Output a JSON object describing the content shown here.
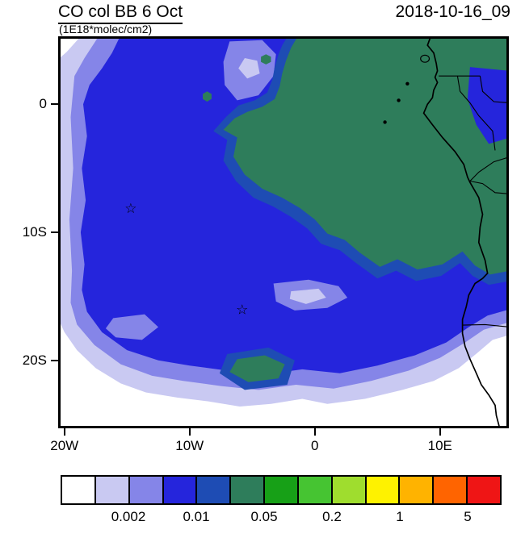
{
  "header": {
    "title": "CO col BB 6 Oct",
    "subtitle": "(1E18*molec/cm2)",
    "timestamp": "2018-10-16_09"
  },
  "chart_data": {
    "type": "heatmap",
    "subtype": "filled-contour-geographic-map",
    "title": "CO col BB 6 Oct",
    "units": "1E18*molec/cm2",
    "timestamp": "2018-10-16_09",
    "x_axis": {
      "range": [
        -20.5,
        15.5
      ],
      "ticks": [
        {
          "value": -20,
          "label": "20W"
        },
        {
          "value": -10,
          "label": "10W"
        },
        {
          "value": 0,
          "label": "0"
        },
        {
          "value": 10,
          "label": "10E"
        }
      ]
    },
    "y_axis": {
      "range": [
        -25.3,
        5.3
      ],
      "ticks": [
        {
          "value": 0,
          "label": "0"
        },
        {
          "value": -10,
          "label": "10S"
        },
        {
          "value": -20,
          "label": "20S"
        }
      ]
    },
    "colorbar": {
      "colors": [
        "#ffffff",
        "#c9c9f2",
        "#8585e8",
        "#2525dc",
        "#1e4cb4",
        "#2e7d5b",
        "#17a017",
        "#46c432",
        "#9fdd2e",
        "#fef200",
        "#ffb300",
        "#ff6400",
        "#ef1515"
      ],
      "labels": [
        {
          "boundary_after_cell": 2,
          "text": "0.002"
        },
        {
          "boundary_after_cell": 4,
          "text": "0.01"
        },
        {
          "boundary_after_cell": 6,
          "text": "0.05"
        },
        {
          "boundary_after_cell": 8,
          "text": "0.2"
        },
        {
          "boundary_after_cell": 10,
          "text": "1"
        },
        {
          "boundary_after_cell": 12,
          "text": "5"
        }
      ]
    },
    "markers": [
      {
        "symbol": "☆",
        "lon": -14.7,
        "lat": -8.1
      },
      {
        "symbol": "☆",
        "lon": -5.8,
        "lat": -16.0
      }
    ],
    "regions": [
      {
        "color": 1,
        "points": [
          [
            -18.6,
            5.4
          ],
          [
            15.6,
            5.4
          ],
          [
            15.6,
            -18.0
          ],
          [
            14.2,
            -18.4
          ],
          [
            13.0,
            -19.4
          ],
          [
            11.5,
            -20.6
          ],
          [
            9.5,
            -21.6
          ],
          [
            7.0,
            -22.3
          ],
          [
            4.0,
            -23.0
          ],
          [
            1.0,
            -23.4
          ],
          [
            -1.0,
            -23.0
          ],
          [
            -3.5,
            -23.4
          ],
          [
            -6.0,
            -23.6
          ],
          [
            -8.5,
            -23.2
          ],
          [
            -11.0,
            -22.9
          ],
          [
            -13.5,
            -22.5
          ],
          [
            -15.5,
            -21.8
          ],
          [
            -17.5,
            -20.6
          ],
          [
            -19.0,
            -19.2
          ],
          [
            -20.0,
            -17.8
          ],
          [
            -20.6,
            -16.5
          ],
          [
            -20.6,
            3.4
          ],
          [
            -19.8,
            4.1
          ]
        ]
      },
      {
        "color": 2,
        "points": [
          [
            -17.2,
            5.4
          ],
          [
            15.6,
            5.4
          ],
          [
            15.6,
            -17.0
          ],
          [
            13.5,
            -17.6
          ],
          [
            12.0,
            -18.6
          ],
          [
            10.0,
            -19.8
          ],
          [
            7.5,
            -20.8
          ],
          [
            4.5,
            -21.6
          ],
          [
            1.5,
            -22.2
          ],
          [
            -1.5,
            -21.9
          ],
          [
            -4.5,
            -22.3
          ],
          [
            -7.5,
            -22.0
          ],
          [
            -10.5,
            -21.6
          ],
          [
            -13.0,
            -21.2
          ],
          [
            -15.5,
            -20.3
          ],
          [
            -17.6,
            -18.8
          ],
          [
            -19.0,
            -17.2
          ],
          [
            -19.5,
            -15.5
          ],
          [
            -19.4,
            -13.0
          ],
          [
            -19.6,
            -9.0
          ],
          [
            -19.3,
            -5.0
          ],
          [
            -19.5,
            -1.0
          ],
          [
            -19.2,
            2.2
          ],
          [
            -18.4,
            3.6
          ]
        ]
      },
      {
        "color": 3,
        "points": [
          [
            -15.5,
            5.4
          ],
          [
            15.6,
            5.4
          ],
          [
            15.6,
            -16.0
          ],
          [
            13.8,
            -16.5
          ],
          [
            12.3,
            -17.4
          ],
          [
            10.5,
            -18.6
          ],
          [
            8.0,
            -19.6
          ],
          [
            5.0,
            -20.4
          ],
          [
            2.0,
            -21.0
          ],
          [
            -1.0,
            -20.7
          ],
          [
            -4.0,
            -21.1
          ],
          [
            -7.0,
            -20.8
          ],
          [
            -10.0,
            -20.4
          ],
          [
            -12.5,
            -20.0
          ],
          [
            -15.0,
            -19.2
          ],
          [
            -17.0,
            -17.8
          ],
          [
            -18.2,
            -16.2
          ],
          [
            -18.6,
            -14.5
          ],
          [
            -18.4,
            -12.5
          ],
          [
            -18.7,
            -10.0
          ],
          [
            -18.3,
            -7.5
          ],
          [
            -18.6,
            -5.0
          ],
          [
            -18.2,
            -2.5
          ],
          [
            -18.5,
            0.0
          ],
          [
            -18.0,
            1.5
          ],
          [
            -17.0,
            2.8
          ],
          [
            -16.2,
            4.0
          ]
        ]
      },
      {
        "color": 2,
        "points": [
          [
            -6.8,
            4.9
          ],
          [
            -4.2,
            5.0
          ],
          [
            -3.1,
            3.9
          ],
          [
            -3.3,
            2.2
          ],
          [
            -4.5,
            0.7
          ],
          [
            -6.2,
            0.3
          ],
          [
            -7.2,
            1.5
          ],
          [
            -7.3,
            3.3
          ]
        ]
      },
      {
        "color": 1,
        "points": [
          [
            -5.6,
            3.6
          ],
          [
            -4.6,
            3.4
          ],
          [
            -4.4,
            2.4
          ],
          [
            -5.4,
            2.0
          ],
          [
            -6.1,
            2.8
          ]
        ]
      },
      {
        "color": 2,
        "points": [
          [
            -3.3,
            -14.0
          ],
          [
            -0.5,
            -13.7
          ],
          [
            1.9,
            -14.2
          ],
          [
            2.6,
            -15.1
          ],
          [
            1.0,
            -15.9
          ],
          [
            -1.6,
            -16.1
          ],
          [
            -3.1,
            -15.4
          ]
        ]
      },
      {
        "color": 1,
        "points": [
          [
            -1.9,
            -14.6
          ],
          [
            0.3,
            -14.4
          ],
          [
            0.9,
            -15.1
          ],
          [
            -0.7,
            -15.6
          ],
          [
            -2.0,
            -15.2
          ]
        ]
      },
      {
        "color": 2,
        "points": [
          [
            -16.1,
            -16.7
          ],
          [
            -13.6,
            -16.4
          ],
          [
            -12.5,
            -17.4
          ],
          [
            -13.8,
            -18.4
          ],
          [
            -15.9,
            -18.2
          ],
          [
            -16.7,
            -17.5
          ]
        ]
      },
      {
        "color": 4,
        "points": [
          [
            -2.1,
            5.4
          ],
          [
            15.6,
            5.4
          ],
          [
            15.6,
            -13.8
          ],
          [
            13.9,
            -14.1
          ],
          [
            12.6,
            -13.4
          ],
          [
            11.6,
            -12.4
          ],
          [
            10.1,
            -13.4
          ],
          [
            8.1,
            -13.8
          ],
          [
            6.5,
            -13.0
          ],
          [
            5.0,
            -13.6
          ],
          [
            3.3,
            -12.4
          ],
          [
            2.0,
            -11.4
          ],
          [
            0.5,
            -10.9
          ],
          [
            -0.6,
            -9.7
          ],
          [
            -1.9,
            -8.8
          ],
          [
            -3.3,
            -8.0
          ],
          [
            -4.9,
            -7.3
          ],
          [
            -6.3,
            -6.0
          ],
          [
            -7.3,
            -4.4
          ],
          [
            -7.0,
            -2.8
          ],
          [
            -8.1,
            -2.1
          ],
          [
            -7.1,
            -1.0
          ],
          [
            -6.1,
            -0.1
          ],
          [
            -4.8,
            0.3
          ],
          [
            -3.8,
            0.9
          ],
          [
            -3.4,
            1.9
          ],
          [
            -3.2,
            2.9
          ],
          [
            -2.9,
            3.9
          ],
          [
            -2.6,
            4.6
          ]
        ]
      },
      {
        "color": 5,
        "points": [
          [
            -1.3,
            5.4
          ],
          [
            15.6,
            5.4
          ],
          [
            15.6,
            -13.0
          ],
          [
            14.0,
            -13.3
          ],
          [
            12.8,
            -12.6
          ],
          [
            11.8,
            -11.5
          ],
          [
            10.2,
            -12.5
          ],
          [
            8.2,
            -12.9
          ],
          [
            6.6,
            -12.1
          ],
          [
            5.2,
            -12.7
          ],
          [
            3.6,
            -11.6
          ],
          [
            2.4,
            -10.6
          ],
          [
            1.0,
            -10.1
          ],
          [
            0.0,
            -9.0
          ],
          [
            -1.2,
            -8.1
          ],
          [
            -2.6,
            -7.3
          ],
          [
            -4.2,
            -6.6
          ],
          [
            -5.6,
            -5.5
          ],
          [
            -6.5,
            -4.1
          ],
          [
            -6.2,
            -2.6
          ],
          [
            -7.3,
            -2.0
          ],
          [
            -6.4,
            -1.1
          ],
          [
            -5.4,
            -0.6
          ],
          [
            -4.2,
            -0.2
          ],
          [
            -3.2,
            0.4
          ],
          [
            -2.8,
            1.4
          ],
          [
            -2.6,
            2.4
          ],
          [
            -2.3,
            3.4
          ],
          [
            -1.9,
            4.4
          ]
        ]
      },
      {
        "color": 4,
        "points": [
          [
            -7.0,
            -19.5
          ],
          [
            -3.7,
            -19.0
          ],
          [
            -1.6,
            -20.0
          ],
          [
            -2.2,
            -21.9
          ],
          [
            -5.6,
            -22.3
          ],
          [
            -7.6,
            -21.0
          ]
        ]
      },
      {
        "color": 5,
        "points": [
          [
            -6.2,
            -19.9
          ],
          [
            -4.0,
            -19.6
          ],
          [
            -2.4,
            -20.3
          ],
          [
            -2.9,
            -21.4
          ],
          [
            -5.3,
            -21.7
          ],
          [
            -6.8,
            -20.9
          ]
        ]
      },
      {
        "color": 5,
        "points": [
          [
            -8.6,
            1.0
          ],
          [
            -8.25,
            0.8
          ],
          [
            -8.25,
            0.4
          ],
          [
            -8.6,
            0.2
          ],
          [
            -8.95,
            0.4
          ],
          [
            -8.95,
            0.8
          ]
        ]
      },
      {
        "color": 5,
        "points": [
          [
            -3.9,
            3.9
          ],
          [
            -3.5,
            3.7
          ],
          [
            -3.5,
            3.3
          ],
          [
            -3.9,
            3.1
          ],
          [
            -4.3,
            3.3
          ],
          [
            -4.3,
            3.7
          ]
        ]
      },
      {
        "color": 3,
        "points": [
          [
            12.4,
            2.9
          ],
          [
            15.6,
            2.6
          ],
          [
            15.6,
            -2.6
          ],
          [
            13.9,
            -3.1
          ],
          [
            12.9,
            -1.6
          ],
          [
            12.2,
            0.4
          ]
        ]
      }
    ],
    "coastline": [
      [
        9.3,
        5.4
      ],
      [
        9.0,
        4.6
      ],
      [
        9.5,
        4.0
      ],
      [
        9.7,
        3.2
      ],
      [
        9.8,
        2.6
      ],
      [
        9.6,
        2.1
      ],
      [
        9.8,
        1.7
      ],
      [
        9.5,
        1.1
      ],
      [
        9.4,
        0.5
      ],
      [
        9.0,
        0.0
      ],
      [
        8.7,
        -0.7
      ],
      [
        9.4,
        -1.6
      ],
      [
        10.2,
        -2.6
      ],
      [
        11.2,
        -3.7
      ],
      [
        11.9,
        -4.7
      ],
      [
        12.2,
        -5.7
      ],
      [
        12.4,
        -6.1
      ],
      [
        13.1,
        -7.3
      ],
      [
        13.4,
        -8.6
      ],
      [
        13.2,
        -9.6
      ],
      [
        13.1,
        -10.8
      ],
      [
        13.6,
        -12.2
      ],
      [
        13.8,
        -13.2
      ],
      [
        13.4,
        -13.6
      ],
      [
        12.8,
        -14.0
      ],
      [
        12.3,
        -14.9
      ],
      [
        12.1,
        -15.8
      ],
      [
        11.8,
        -16.8
      ],
      [
        11.8,
        -17.9
      ],
      [
        12.0,
        -18.9
      ],
      [
        12.4,
        -19.9
      ],
      [
        12.9,
        -21.0
      ],
      [
        13.3,
        -21.9
      ],
      [
        13.9,
        -22.7
      ],
      [
        14.4,
        -23.5
      ],
      [
        14.5,
        -24.3
      ],
      [
        14.8,
        -25.4
      ]
    ],
    "borders": [
      [
        [
          9.9,
          2.2
        ],
        [
          11.4,
          2.2
        ],
        [
          13.2,
          2.2
        ]
      ],
      [
        [
          11.4,
          2.2
        ],
        [
          11.6,
          1.0
        ],
        [
          12.4,
          0.1
        ],
        [
          13.1,
          -0.9
        ],
        [
          14.2,
          -2.1
        ],
        [
          14.4,
          -3.6
        ]
      ],
      [
        [
          13.2,
          2.2
        ],
        [
          13.4,
          1.0
        ],
        [
          14.3,
          0.2
        ],
        [
          15.6,
          0.1
        ]
      ],
      [
        [
          15.6,
          -4.1
        ],
        [
          14.3,
          -4.5
        ],
        [
          13.1,
          -5.3
        ],
        [
          12.4,
          -6.0
        ]
      ],
      [
        [
          12.4,
          -6.0
        ],
        [
          13.4,
          -6.2
        ],
        [
          14.4,
          -6.9
        ],
        [
          15.6,
          -7.0
        ]
      ],
      [
        [
          11.8,
          -17.25
        ],
        [
          13.6,
          -17.2
        ],
        [
          15.6,
          -17.4
        ]
      ]
    ],
    "islands": {
      "dots": [
        [
          7.4,
          1.6
        ],
        [
          6.7,
          0.3
        ],
        [
          5.6,
          -1.4
        ]
      ],
      "outlines": [
        {
          "lon": 8.8,
          "lat": 3.55,
          "rx": 0.35,
          "ry": 0.28
        }
      ]
    }
  }
}
